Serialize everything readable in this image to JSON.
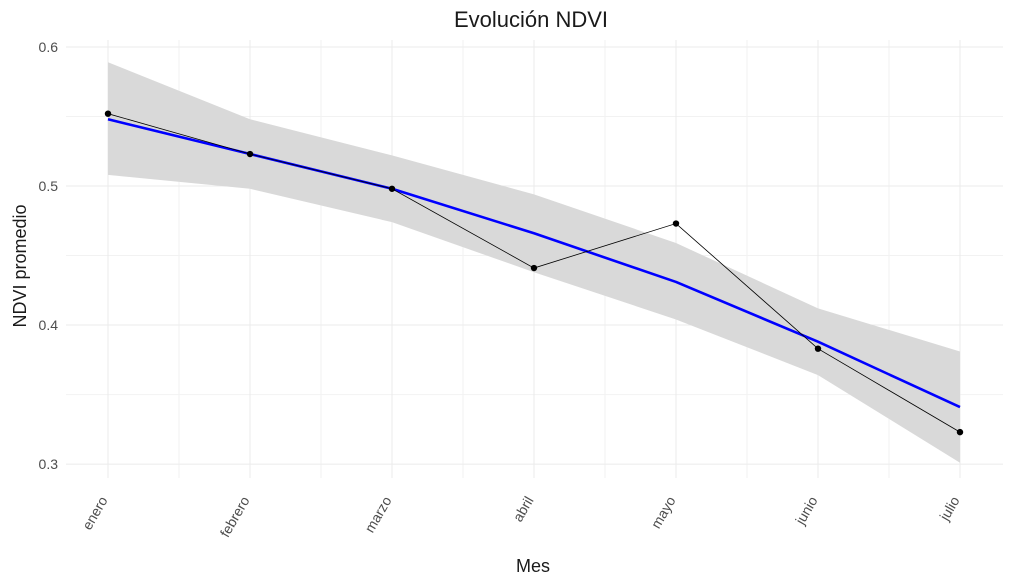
{
  "chart_data": {
    "type": "line",
    "title": "Evolución NDVI",
    "xlabel": "Mes",
    "ylabel": "NDVI promedio",
    "categories": [
      "enero",
      "febrero",
      "marzo",
      "abril",
      "mayo",
      "junio",
      "julio"
    ],
    "ylim": [
      0.29,
      0.605
    ],
    "yticks": [
      0.3,
      0.4,
      0.5,
      0.6
    ],
    "ytick_labels": [
      "0.3",
      "0.4",
      "0.5",
      "0.6"
    ],
    "grid": true,
    "series": [
      {
        "kind": "observed",
        "values": [
          0.552,
          0.523,
          0.498,
          0.441,
          0.473,
          0.383,
          0.323
        ],
        "color": "#000000"
      },
      {
        "kind": "smooth",
        "fit": [
          0.548,
          0.523,
          0.498,
          0.466,
          0.431,
          0.388,
          0.341
        ],
        "lower": [
          0.508,
          0.498,
          0.474,
          0.438,
          0.404,
          0.364,
          0.301
        ],
        "upper": [
          0.589,
          0.548,
          0.522,
          0.494,
          0.459,
          0.412,
          0.381
        ],
        "color": "#0000ff",
        "band_color": "#d9d9d9"
      }
    ]
  }
}
